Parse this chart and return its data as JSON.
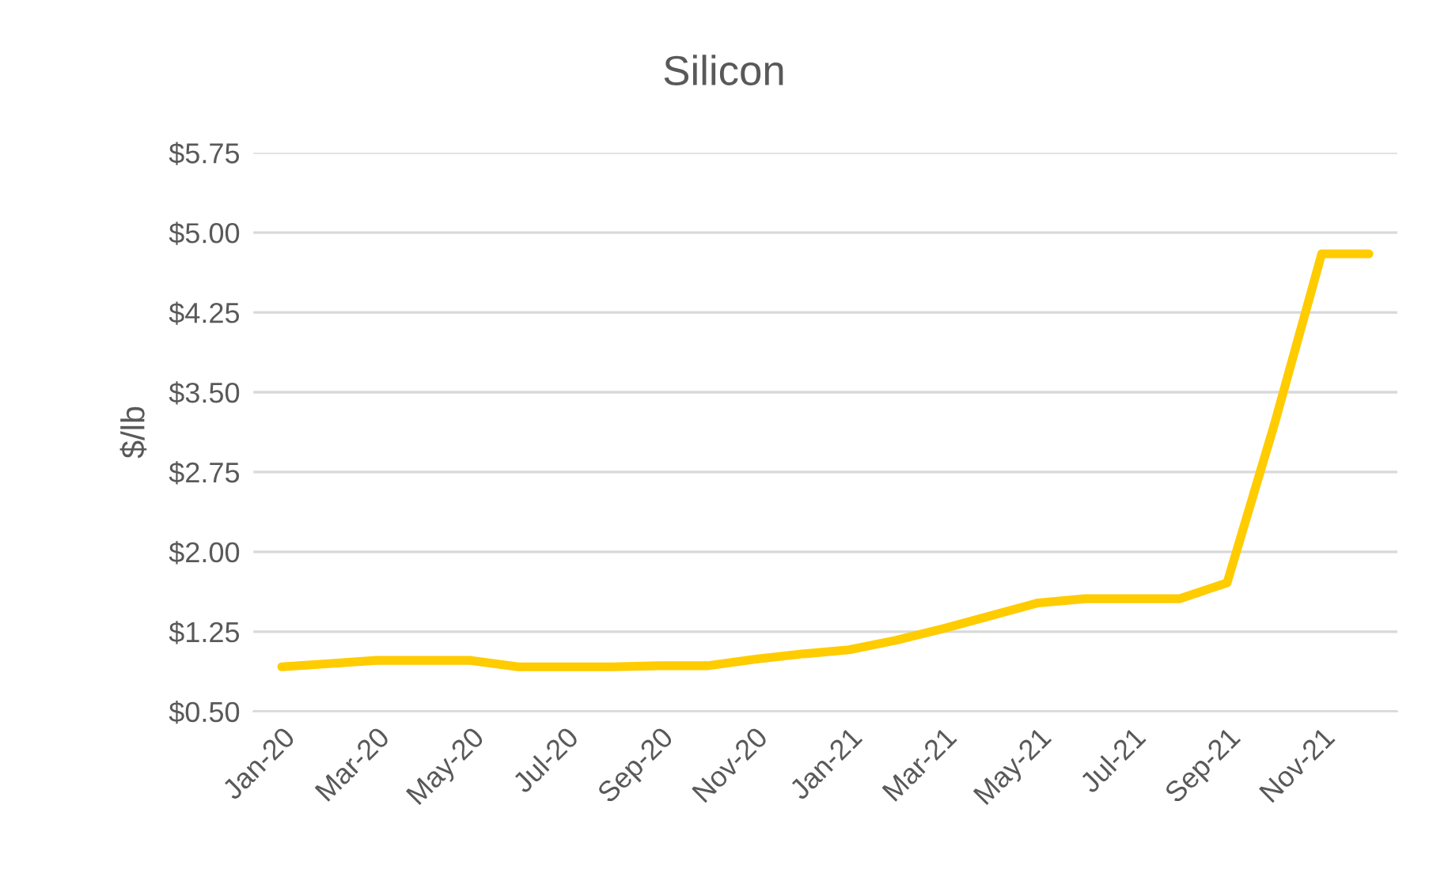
{
  "chart_data": {
    "type": "line",
    "title": "Silicon",
    "ylabel": "$/lb",
    "categories": [
      "Jan-20",
      null,
      "Mar-20",
      null,
      "May-20",
      null,
      "Jul-20",
      null,
      "Sep-20",
      null,
      "Nov-20",
      null,
      "Jan-21",
      null,
      "Mar-21",
      null,
      "May-21",
      null,
      "Jul-21",
      null,
      "Sep-21",
      null,
      "Nov-21",
      null
    ],
    "series": [
      {
        "color": "#ffcc00",
        "values": [
          0.92,
          0.95,
          0.98,
          0.98,
          0.98,
          0.92,
          0.92,
          0.92,
          0.93,
          0.93,
          0.99,
          1.04,
          1.08,
          1.17,
          1.28,
          1.4,
          1.52,
          1.56,
          1.56,
          1.56,
          1.71,
          3.2,
          4.8,
          4.8
        ]
      }
    ],
    "ylim": [
      0.5,
      5.75
    ],
    "yticks": [
      {
        "value": 0.5,
        "label": "$0.50"
      },
      {
        "value": 1.25,
        "label": "$1.25"
      },
      {
        "value": 2.0,
        "label": "$2.00"
      },
      {
        "value": 2.75,
        "label": "$2.75"
      },
      {
        "value": 3.5,
        "label": "$3.50"
      },
      {
        "value": 4.25,
        "label": "$4.25"
      },
      {
        "value": 5.0,
        "label": "$5.00"
      },
      {
        "value": 5.75,
        "label": "$5.75"
      }
    ],
    "grid": "y",
    "legend": false,
    "marker": "none",
    "line_style": "solid"
  }
}
